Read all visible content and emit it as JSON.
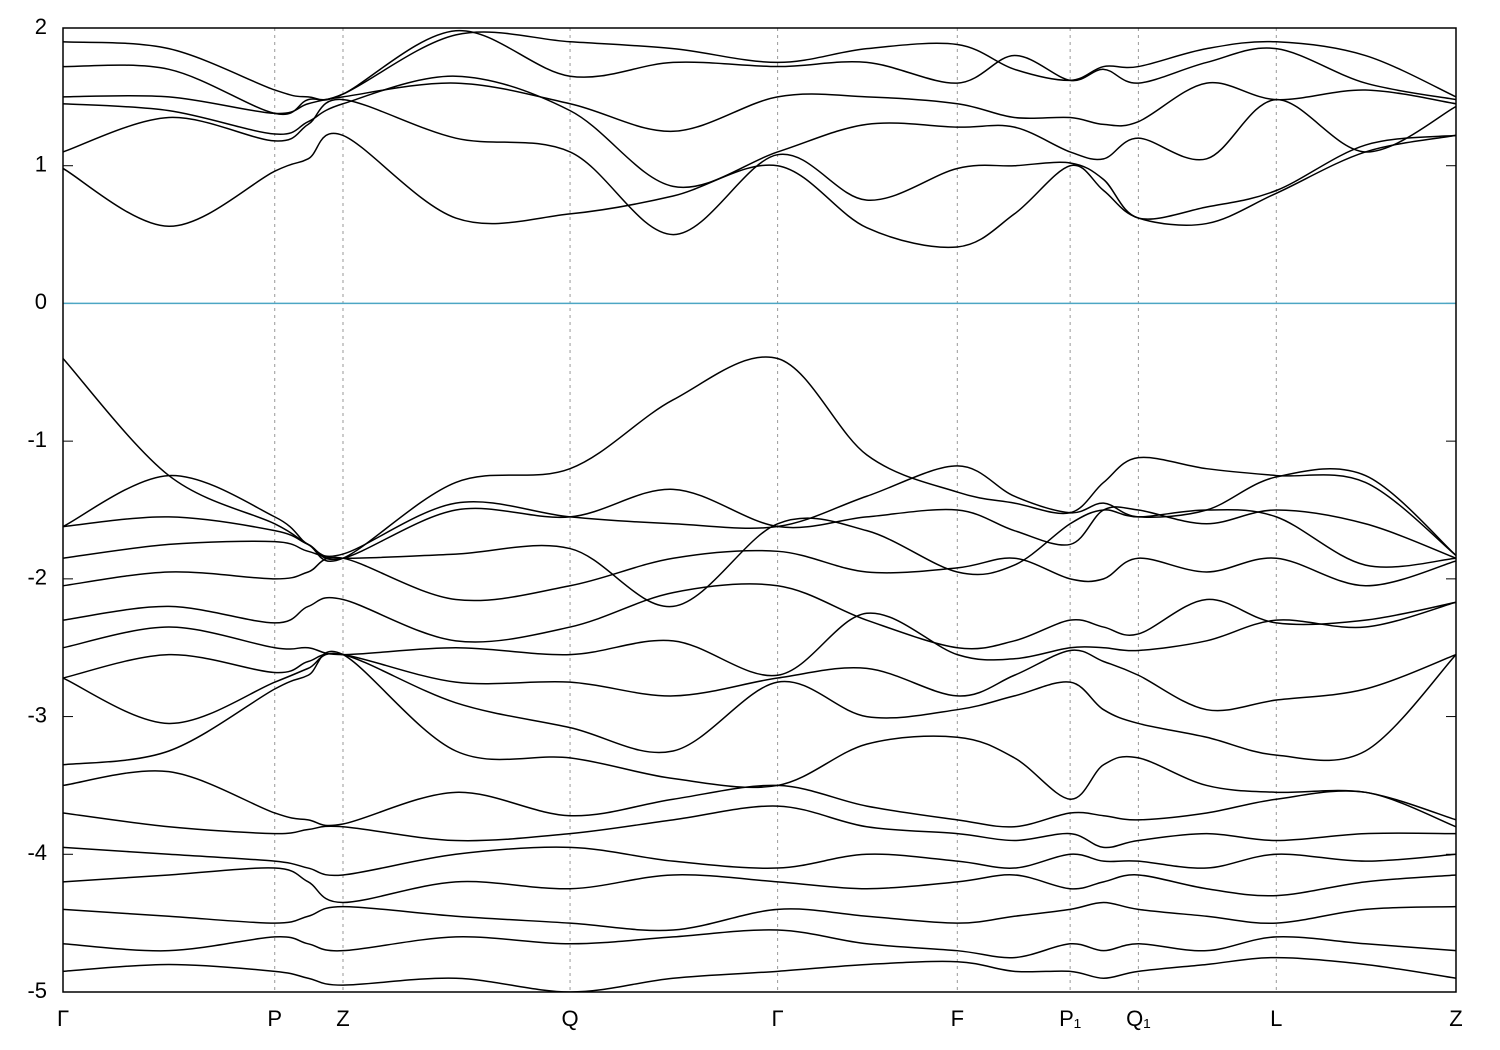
{
  "chart_data": {
    "type": "line",
    "x": [
      0,
      0.076,
      0.152,
      0.176,
      0.201,
      0.282,
      0.364,
      0.438,
      0.513,
      0.577,
      0.642,
      0.683,
      0.723,
      0.747,
      0.772,
      0.821,
      0.871,
      0.935,
      1
    ],
    "xlim": [
      0,
      1
    ],
    "xticks": [
      {
        "value": 0,
        "label": "Γ"
      },
      {
        "value": 0.152,
        "label": "P"
      },
      {
        "value": 0.201,
        "label": "Z"
      },
      {
        "value": 0.364,
        "label": "Q"
      },
      {
        "value": 0.513,
        "label": "Γ"
      },
      {
        "value": 0.642,
        "label": "F"
      },
      {
        "value": 0.723,
        "label": "P₁"
      },
      {
        "value": 0.772,
        "label": "Q₁"
      },
      {
        "value": 0.871,
        "label": "L"
      },
      {
        "value": 1,
        "label": "Z"
      }
    ],
    "ylim": [
      -5,
      2
    ],
    "yticks": [
      -5,
      -4,
      -3,
      -2,
      -1,
      0,
      1,
      2
    ],
    "grid": "x",
    "reference_line": {
      "y": 0,
      "color": "#4da6c4"
    },
    "series": [
      {
        "color": "#000000",
        "values": [
          0.98,
          0.56,
          0.96,
          1.05,
          1.22,
          0.62,
          0.65,
          0.78,
          1.0,
          0.55,
          0.41,
          0.65,
          1.0,
          0.82,
          0.62,
          0.58,
          0.8,
          1.1,
          1.22
        ]
      },
      {
        "color": "#000000",
        "values": [
          1.1,
          1.35,
          1.18,
          1.3,
          1.48,
          1.2,
          1.1,
          0.5,
          1.08,
          0.75,
          0.98,
          1.0,
          1.02,
          0.9,
          0.62,
          0.7,
          0.82,
          1.15,
          1.22
        ]
      },
      {
        "color": "#000000",
        "values": [
          1.45,
          1.4,
          1.23,
          1.32,
          1.45,
          1.65,
          1.4,
          0.85,
          1.1,
          1.3,
          1.28,
          1.28,
          1.1,
          1.05,
          1.2,
          1.05,
          1.48,
          1.1,
          1.43
        ]
      },
      {
        "color": "#000000",
        "values": [
          1.5,
          1.5,
          1.38,
          1.45,
          1.5,
          1.6,
          1.45,
          1.25,
          1.5,
          1.5,
          1.45,
          1.35,
          1.35,
          1.3,
          1.32,
          1.6,
          1.48,
          1.55,
          1.45
        ]
      },
      {
        "color": "#000000",
        "values": [
          1.72,
          1.7,
          1.38,
          1.48,
          1.52,
          1.98,
          1.65,
          1.75,
          1.72,
          1.75,
          1.6,
          1.8,
          1.62,
          1.7,
          1.6,
          1.75,
          1.85,
          1.6,
          1.48
        ]
      },
      {
        "color": "#000000",
        "values": [
          1.9,
          1.85,
          1.55,
          1.5,
          1.52,
          1.95,
          1.9,
          1.85,
          1.75,
          1.85,
          1.88,
          1.7,
          1.62,
          1.72,
          1.72,
          1.85,
          1.9,
          1.8,
          1.5
        ]
      },
      {
        "color": "#000000",
        "values": [
          -0.4,
          -1.25,
          -1.6,
          -1.75,
          -1.85,
          -1.3,
          -1.2,
          -0.7,
          -0.4,
          -1.1,
          -1.37,
          -1.45,
          -1.52,
          -1.3,
          -1.12,
          -1.2,
          -1.25,
          -1.3,
          -1.83
        ]
      },
      {
        "color": "#000000",
        "values": [
          -1.62,
          -1.25,
          -1.55,
          -1.75,
          -1.82,
          -1.45,
          -1.55,
          -1.6,
          -1.62,
          -1.4,
          -1.18,
          -1.4,
          -1.52,
          -1.45,
          -1.55,
          -1.5,
          -1.26,
          -1.25,
          -1.83
        ]
      },
      {
        "color": "#000000",
        "values": [
          -1.62,
          -1.55,
          -1.65,
          -1.75,
          -1.85,
          -1.5,
          -1.55,
          -1.35,
          -1.62,
          -1.55,
          -1.5,
          -1.65,
          -1.75,
          -1.5,
          -1.5,
          -1.6,
          -1.5,
          -1.6,
          -1.85
        ]
      },
      {
        "color": "#000000",
        "values": [
          -1.85,
          -1.75,
          -1.73,
          -1.8,
          -1.85,
          -1.82,
          -1.78,
          -2.2,
          -1.6,
          -1.65,
          -1.95,
          -1.9,
          -1.6,
          -1.5,
          -1.55,
          -1.5,
          -1.55,
          -1.9,
          -1.85
        ]
      },
      {
        "color": "#000000",
        "values": [
          -2.05,
          -1.95,
          -2.0,
          -1.95,
          -1.85,
          -2.15,
          -2.05,
          -1.85,
          -1.8,
          -1.95,
          -1.92,
          -1.85,
          -2.0,
          -2.0,
          -1.85,
          -1.95,
          -1.85,
          -2.05,
          -1.87
        ]
      },
      {
        "color": "#000000",
        "values": [
          -2.3,
          -2.2,
          -2.32,
          -2.2,
          -2.15,
          -2.45,
          -2.35,
          -2.1,
          -2.05,
          -2.3,
          -2.5,
          -2.45,
          -2.3,
          -2.35,
          -2.4,
          -2.15,
          -2.32,
          -2.3,
          -2.17
        ]
      },
      {
        "color": "#000000",
        "values": [
          -2.5,
          -2.35,
          -2.5,
          -2.5,
          -2.55,
          -2.5,
          -2.55,
          -2.45,
          -2.7,
          -2.25,
          -2.55,
          -2.58,
          -2.5,
          -2.5,
          -2.52,
          -2.45,
          -2.3,
          -2.35,
          -2.17
        ]
      },
      {
        "color": "#000000",
        "values": [
          -2.72,
          -2.55,
          -2.68,
          -2.6,
          -2.55,
          -2.75,
          -2.75,
          -2.85,
          -2.72,
          -2.65,
          -2.85,
          -2.7,
          -2.52,
          -2.6,
          -2.7,
          -2.95,
          -2.88,
          -2.8,
          -2.55
        ]
      },
      {
        "color": "#000000",
        "values": [
          -2.72,
          -3.05,
          -2.75,
          -2.65,
          -2.55,
          -2.9,
          -3.08,
          -3.25,
          -2.75,
          -3.0,
          -2.95,
          -2.85,
          -2.75,
          -2.95,
          -3.05,
          -3.15,
          -3.28,
          -3.25,
          -2.55
        ]
      },
      {
        "color": "#000000",
        "values": [
          -3.35,
          -3.25,
          -2.8,
          -2.7,
          -2.55,
          -3.25,
          -3.3,
          -3.45,
          -3.5,
          -3.2,
          -3.15,
          -3.3,
          -3.6,
          -3.35,
          -3.3,
          -3.5,
          -3.55,
          -3.55,
          -3.75
        ]
      },
      {
        "color": "#000000",
        "values": [
          -3.5,
          -3.4,
          -3.7,
          -3.75,
          -3.78,
          -3.55,
          -3.72,
          -3.6,
          -3.5,
          -3.65,
          -3.75,
          -3.8,
          -3.7,
          -3.72,
          -3.75,
          -3.7,
          -3.6,
          -3.55,
          -3.8
        ]
      },
      {
        "color": "#000000",
        "values": [
          -3.7,
          -3.8,
          -3.85,
          -3.82,
          -3.8,
          -3.9,
          -3.85,
          -3.75,
          -3.65,
          -3.8,
          -3.85,
          -3.9,
          -3.85,
          -3.95,
          -3.9,
          -3.85,
          -3.9,
          -3.85,
          -3.85
        ]
      },
      {
        "color": "#000000",
        "values": [
          -3.95,
          -4.0,
          -4.05,
          -4.1,
          -4.15,
          -4.0,
          -3.95,
          -4.05,
          -4.1,
          -4.0,
          -4.05,
          -4.1,
          -4.0,
          -4.05,
          -4.05,
          -4.1,
          -4.0,
          -4.05,
          -4.0
        ]
      },
      {
        "color": "#000000",
        "values": [
          -4.2,
          -4.15,
          -4.1,
          -4.2,
          -4.35,
          -4.2,
          -4.25,
          -4.15,
          -4.2,
          -4.25,
          -4.2,
          -4.15,
          -4.25,
          -4.2,
          -4.15,
          -4.25,
          -4.3,
          -4.2,
          -4.15
        ]
      },
      {
        "color": "#000000",
        "values": [
          -4.4,
          -4.45,
          -4.5,
          -4.45,
          -4.38,
          -4.45,
          -4.5,
          -4.55,
          -4.4,
          -4.45,
          -4.5,
          -4.45,
          -4.4,
          -4.35,
          -4.4,
          -4.45,
          -4.5,
          -4.4,
          -4.38
        ]
      },
      {
        "color": "#000000",
        "values": [
          -4.65,
          -4.7,
          -4.6,
          -4.65,
          -4.7,
          -4.6,
          -4.65,
          -4.6,
          -4.55,
          -4.65,
          -4.7,
          -4.75,
          -4.65,
          -4.7,
          -4.65,
          -4.7,
          -4.6,
          -4.65,
          -4.7
        ]
      },
      {
        "color": "#000000",
        "values": [
          -4.85,
          -4.8,
          -4.85,
          -4.9,
          -4.95,
          -4.9,
          -5.0,
          -4.9,
          -4.85,
          -4.8,
          -4.78,
          -4.85,
          -4.85,
          -4.9,
          -4.85,
          -4.8,
          -4.75,
          -4.8,
          -4.9
        ]
      }
    ]
  }
}
